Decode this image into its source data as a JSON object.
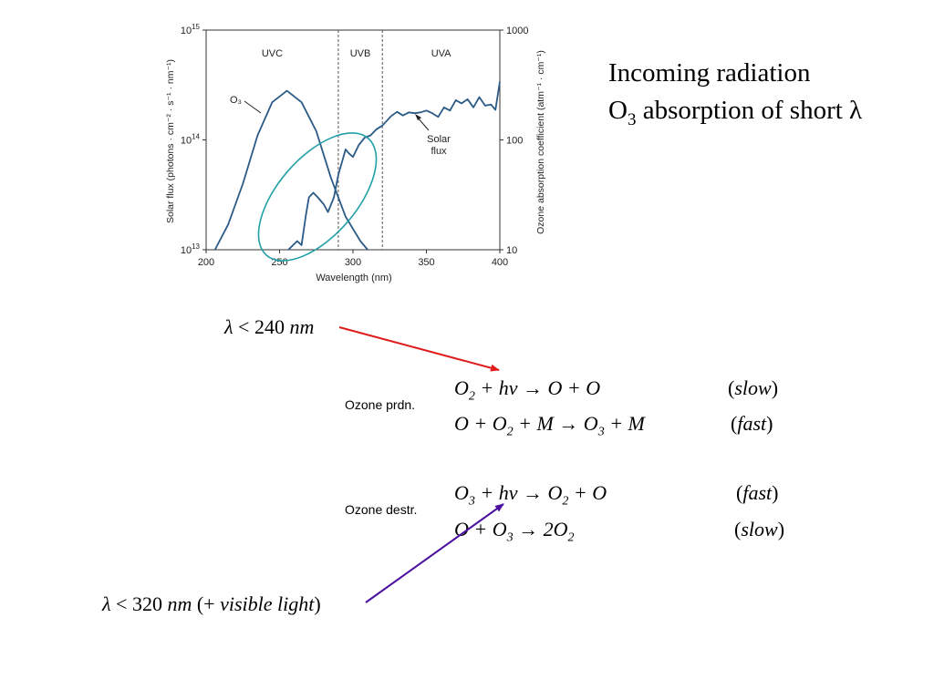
{
  "chart_data": {
    "type": "line",
    "xlabel": "Wavelength (nm)",
    "ylabel_left": "Solar flux (photons · cm⁻² · s⁻¹ · nm⁻¹)",
    "ylabel_right": "Ozone absorption coefficient (atm⁻¹ · cm⁻¹)",
    "xlim": [
      200,
      400
    ],
    "ylim_left": [
      10000000000000.0,
      1000000000000000.0
    ],
    "ylim_right": [
      10,
      1000
    ],
    "yscale": "log",
    "x_ticks": [
      "200",
      "250",
      "300",
      "350",
      "400"
    ],
    "y_left_ticks": [
      {
        "base": "10",
        "exp": "13"
      },
      {
        "base": "10",
        "exp": "14"
      },
      {
        "base": "10",
        "exp": "15"
      }
    ],
    "y_right_ticks": [
      "10",
      "100",
      "1000"
    ],
    "regions": [
      {
        "label": "UVC",
        "from": 200,
        "to": 290
      },
      {
        "label": "UVB",
        "from": 290,
        "to": 320
      },
      {
        "label": "UVA",
        "from": 320,
        "to": 400
      }
    ],
    "series": [
      {
        "name": "O₃",
        "color": "#2a5a85",
        "x": [
          206,
          215,
          225,
          235,
          245,
          255,
          265,
          275,
          285,
          295,
          305,
          310
        ],
        "y": [
          10,
          17,
          40,
          110,
          220,
          280,
          220,
          120,
          45,
          20,
          12,
          10
        ]
      },
      {
        "name": "Solar flux",
        "color": "#2a5a85",
        "x": [
          256,
          262,
          265,
          268,
          270,
          273,
          276,
          280,
          283,
          287,
          290,
          295,
          297,
          300,
          304,
          308,
          312,
          316,
          320,
          326,
          330,
          334,
          338,
          342,
          346,
          350,
          354,
          358,
          362,
          366,
          370,
          374,
          378,
          382,
          386,
          390,
          394,
          397,
          400
        ],
        "y": [
          10000000000000.0,
          12000000000000.0,
          11000000000000.0,
          21000000000000.0,
          30000000000000.0,
          33000000000000.0,
          30000000000000.0,
          26000000000000.0,
          22000000000000.0,
          30000000000000.0,
          48000000000000.0,
          82000000000000.0,
          76000000000000.0,
          70000000000000.0,
          90000000000000.0,
          105000000000000.0,
          110000000000000.0,
          125000000000000.0,
          135000000000000.0,
          165000000000000.0,
          180000000000000.0,
          167000000000000.0,
          178000000000000.0,
          175000000000000.0,
          178000000000000.0,
          185000000000000.0,
          175000000000000.0,
          162000000000000.0,
          198000000000000.0,
          185000000000000.0,
          230000000000000.0,
          215000000000000.0,
          235000000000000.0,
          198000000000000.0,
          245000000000000.0,
          205000000000000.0,
          210000000000000.0,
          188000000000000.0,
          340000000000000.0
        ]
      }
    ],
    "annotations": [
      "O₃",
      "Solar",
      "flux"
    ]
  },
  "title": {
    "line1": "Incoming radiation",
    "line2_prefix": "O",
    "line2_sub": "3",
    "line2_suffix": " absorption of short λ"
  },
  "wavelength_short": {
    "symbol": "λ",
    "op": " < 240 ",
    "unit": "nm"
  },
  "wavelength_long": {
    "symbol": "λ",
    "op": " < 320 ",
    "unit": "nm",
    "extra_open": " (+ ",
    "extra": "visible light",
    "extra_close": ")"
  },
  "production": {
    "label": "Ozone prdn.",
    "reactions": [
      {
        "lhs": "O",
        "lhs_sub": "2",
        "mid": " + hν → O + O",
        "rate": "slow"
      },
      {
        "lhs": "O + O",
        "lhs_sub": "2",
        "mid": " + M → O",
        "rhs_sub": "3",
        "rhs_tail": " + M",
        "rate": "fast"
      }
    ]
  },
  "destruction": {
    "label": "Ozone destr.",
    "reactions": [
      {
        "lhs": "O",
        "lhs_sub": "3",
        "mid": " + hν → O",
        "rhs_sub": "2",
        "rhs_tail": " + O",
        "rate": "fast"
      },
      {
        "lhs": "O + O",
        "lhs_sub": "3",
        "mid": " → 2O",
        "rhs_sub": "2",
        "rhs_tail": "",
        "rate": "slow"
      }
    ]
  },
  "colors": {
    "curve": "#2a5a85",
    "ellipse": "#20a0a6",
    "arrow_short": "#e01b1b",
    "arrow_long": "#4b0fa0"
  }
}
